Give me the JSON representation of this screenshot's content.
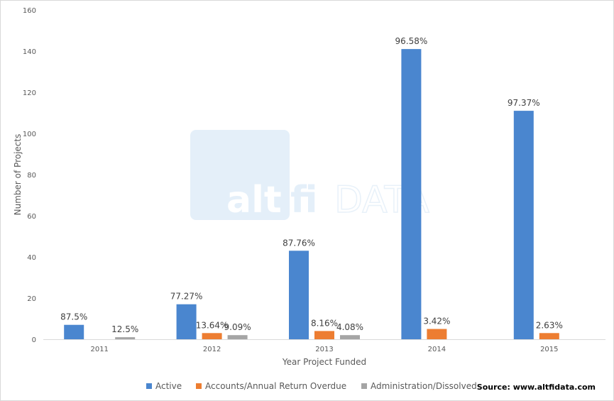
{
  "chart_data": {
    "type": "bar",
    "categories": [
      "2011",
      "2012",
      "2013",
      "2014",
      "2015"
    ],
    "ylabel": "Number of Projects",
    "xlabel": "Year Project Funded",
    "ylim": [
      0,
      160
    ],
    "yticks": [
      0,
      20,
      40,
      60,
      80,
      100,
      120,
      140,
      160
    ],
    "grid": false,
    "legend_position": "bottom",
    "series": [
      {
        "name": "Active",
        "color": "#4a86cf",
        "values": [
          7,
          17,
          43,
          141,
          111
        ],
        "labels": [
          "87.5%",
          "77.27%",
          "87.76%",
          "96.58%",
          "97.37%"
        ]
      },
      {
        "name": "Accounts/Annual Return Overdue",
        "color": "#ed7d31",
        "values": [
          0,
          3,
          4,
          5,
          3
        ],
        "labels": [
          "",
          "13.64%",
          "8.16%",
          "3.42%",
          "2.63%"
        ]
      },
      {
        "name": "Administration/Dissolved",
        "color": "#a5a5a5",
        "values": [
          1,
          2,
          2,
          0,
          0
        ],
        "labels": [
          "12.5%",
          "9.09%",
          "4.08%",
          "",
          ""
        ]
      }
    ]
  },
  "watermark": {
    "part1": "alt",
    "part2": "fi",
    "part3": "DATA"
  },
  "source": "Source: www.altfidata.com"
}
